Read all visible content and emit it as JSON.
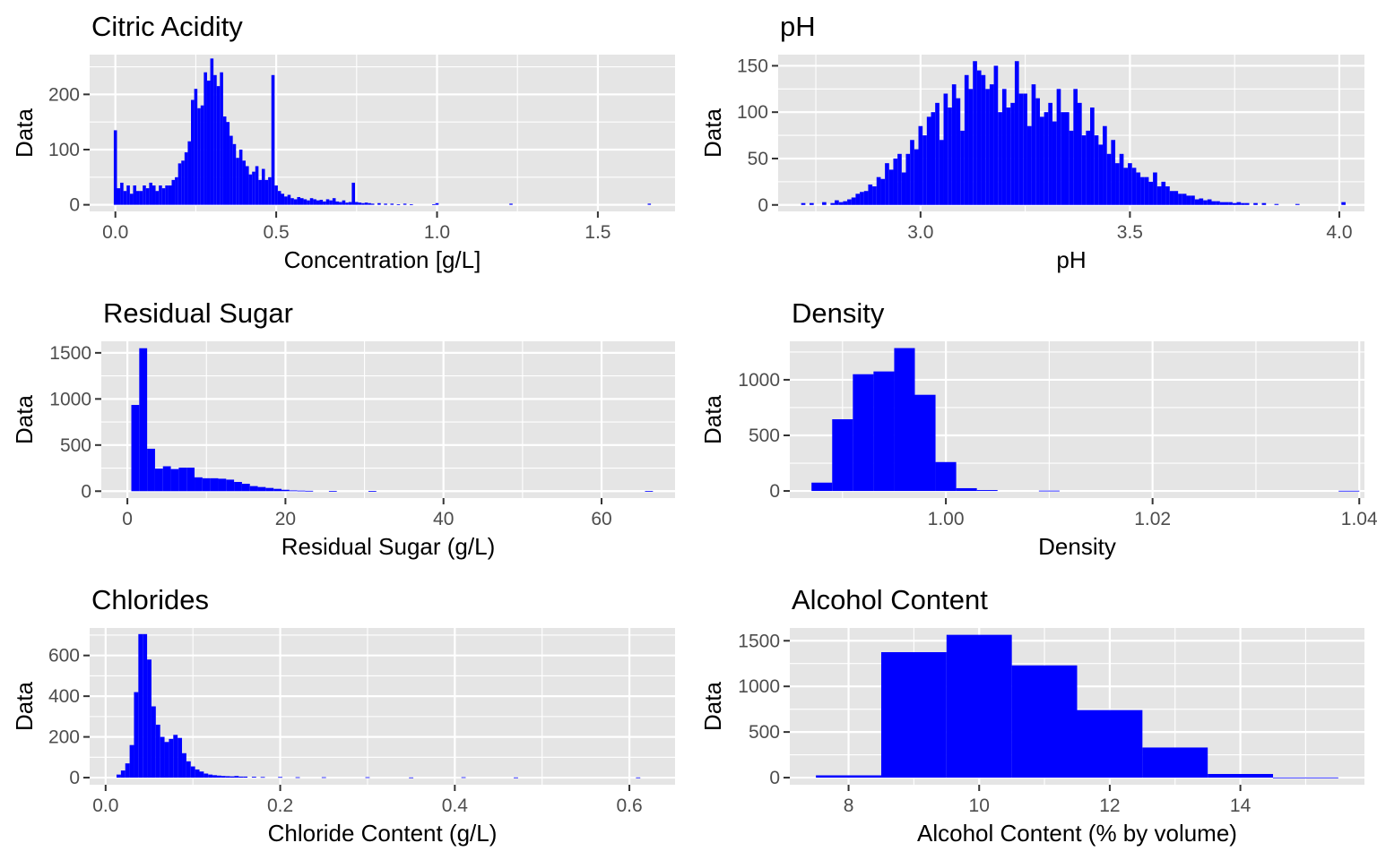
{
  "figure": {
    "bar_color": "#0000FF",
    "panel_background": "#E5E5E5",
    "grid_color": "#FFFFFF"
  },
  "chart_data": [
    {
      "id": "citric-acidity",
      "type": "bar",
      "title": "Citric Acidity",
      "xlabel": "Concentration [g/L]",
      "ylabel": "Data",
      "xlim": [
        -0.08,
        1.74
      ],
      "ylim": [
        -12,
        272
      ],
      "xticks": [
        0.0,
        0.5,
        1.0,
        1.5
      ],
      "xtick_labels": [
        "0.0",
        "0.5",
        "1.0",
        "1.5"
      ],
      "yticks": [
        0,
        100,
        200
      ],
      "ytick_labels": [
        "0",
        "100",
        "200"
      ],
      "grid": true,
      "bin_width": 0.01,
      "x": [
        0.0,
        0.01,
        0.02,
        0.03,
        0.04,
        0.05,
        0.06,
        0.07,
        0.08,
        0.09,
        0.1,
        0.11,
        0.12,
        0.13,
        0.14,
        0.15,
        0.16,
        0.17,
        0.18,
        0.19,
        0.2,
        0.21,
        0.22,
        0.23,
        0.24,
        0.25,
        0.26,
        0.27,
        0.28,
        0.29,
        0.3,
        0.31,
        0.32,
        0.33,
        0.34,
        0.35,
        0.36,
        0.37,
        0.38,
        0.39,
        0.4,
        0.41,
        0.42,
        0.43,
        0.44,
        0.45,
        0.46,
        0.47,
        0.48,
        0.49,
        0.5,
        0.51,
        0.52,
        0.53,
        0.54,
        0.55,
        0.56,
        0.57,
        0.58,
        0.59,
        0.6,
        0.61,
        0.62,
        0.63,
        0.64,
        0.65,
        0.66,
        0.67,
        0.68,
        0.69,
        0.7,
        0.71,
        0.72,
        0.73,
        0.74,
        0.75,
        0.76,
        0.77,
        0.78,
        0.79,
        0.8,
        0.82,
        0.84,
        0.86,
        0.88,
        0.9,
        0.92,
        0.99,
        1.0,
        1.23,
        1.66
      ],
      "values": [
        135,
        30,
        40,
        25,
        35,
        20,
        35,
        25,
        25,
        35,
        30,
        40,
        35,
        25,
        35,
        30,
        35,
        35,
        45,
        50,
        75,
        80,
        95,
        115,
        190,
        210,
        175,
        180,
        240,
        225,
        265,
        235,
        215,
        240,
        160,
        150,
        125,
        110,
        85,
        100,
        80,
        70,
        55,
        60,
        70,
        45,
        65,
        45,
        50,
        235,
        35,
        25,
        20,
        15,
        18,
        12,
        10,
        14,
        12,
        10,
        8,
        12,
        10,
        8,
        9,
        6,
        10,
        8,
        12,
        6,
        5,
        8,
        4,
        5,
        40,
        5,
        4,
        3,
        4,
        3,
        2,
        3,
        2,
        2,
        1,
        2,
        1,
        1,
        3,
        2,
        2
      ]
    },
    {
      "id": "ph",
      "type": "bar",
      "title": "pH",
      "xlabel": "pH",
      "ylabel": "Data",
      "xlim": [
        2.66,
        4.06
      ],
      "ylim": [
        -7,
        162
      ],
      "xticks": [
        3.0,
        3.5,
        4.0
      ],
      "xtick_labels": [
        "3.0",
        "3.5",
        "4.0"
      ],
      "yticks": [
        0,
        50,
        100,
        150
      ],
      "ytick_labels": [
        "0",
        "50",
        "100",
        "150"
      ],
      "grid": true,
      "bin_width": 0.01,
      "x": [
        2.72,
        2.74,
        2.77,
        2.79,
        2.8,
        2.81,
        2.82,
        2.83,
        2.84,
        2.85,
        2.86,
        2.87,
        2.88,
        2.89,
        2.9,
        2.91,
        2.92,
        2.93,
        2.94,
        2.95,
        2.96,
        2.97,
        2.98,
        2.99,
        3.0,
        3.01,
        3.02,
        3.03,
        3.04,
        3.05,
        3.06,
        3.07,
        3.08,
        3.09,
        3.1,
        3.11,
        3.12,
        3.13,
        3.14,
        3.15,
        3.16,
        3.17,
        3.18,
        3.19,
        3.2,
        3.21,
        3.22,
        3.23,
        3.24,
        3.25,
        3.26,
        3.27,
        3.28,
        3.29,
        3.3,
        3.31,
        3.32,
        3.33,
        3.34,
        3.35,
        3.36,
        3.37,
        3.38,
        3.39,
        3.4,
        3.41,
        3.42,
        3.43,
        3.44,
        3.45,
        3.46,
        3.47,
        3.48,
        3.49,
        3.5,
        3.51,
        3.52,
        3.53,
        3.54,
        3.55,
        3.56,
        3.57,
        3.58,
        3.59,
        3.6,
        3.61,
        3.62,
        3.63,
        3.64,
        3.65,
        3.66,
        3.67,
        3.68,
        3.69,
        3.7,
        3.71,
        3.72,
        3.73,
        3.74,
        3.75,
        3.76,
        3.77,
        3.78,
        3.8,
        3.82,
        3.85,
        3.9,
        4.01
      ],
      "values": [
        2,
        2,
        3,
        2,
        5,
        3,
        4,
        6,
        8,
        12,
        14,
        15,
        22,
        20,
        30,
        28,
        45,
        38,
        50,
        55,
        35,
        55,
        70,
        60,
        85,
        75,
        95,
        100,
        110,
        70,
        120,
        105,
        130,
        115,
        80,
        140,
        125,
        155,
        145,
        140,
        125,
        130,
        150,
        100,
        125,
        105,
        110,
        155,
        120,
        120,
        85,
        130,
        115,
        95,
        100,
        110,
        90,
        125,
        100,
        100,
        80,
        125,
        110,
        75,
        80,
        105,
        75,
        65,
        85,
        55,
        70,
        45,
        55,
        40,
        45,
        40,
        35,
        30,
        30,
        25,
        35,
        20,
        25,
        20,
        15,
        15,
        12,
        12,
        10,
        10,
        6,
        7,
        5,
        6,
        4,
        4,
        3,
        3,
        3,
        2,
        3,
        2,
        2,
        2,
        2,
        1,
        1,
        3
      ]
    },
    {
      "id": "residual-sugar",
      "type": "bar",
      "title": "Residual Sugar",
      "xlabel": "Residual Sugar (g/L)",
      "ylabel": "Data",
      "xlim": [
        -3.3,
        69.3
      ],
      "ylim": [
        -75,
        1625
      ],
      "xticks": [
        0,
        20,
        40,
        60
      ],
      "xtick_labels": [
        "0",
        "20",
        "40",
        "60"
      ],
      "yticks": [
        0,
        500,
        1000,
        1500
      ],
      "ytick_labels": [
        "0",
        "500",
        "1000",
        "1500"
      ],
      "grid": true,
      "bin_width": 1,
      "x": [
        1,
        2,
        3,
        4,
        5,
        6,
        7,
        8,
        9,
        10,
        11,
        12,
        13,
        14,
        15,
        16,
        17,
        18,
        19,
        20,
        21,
        22,
        23,
        26,
        31,
        66
      ],
      "values": [
        935,
        1550,
        460,
        245,
        270,
        240,
        255,
        255,
        150,
        140,
        140,
        135,
        125,
        100,
        80,
        55,
        45,
        35,
        25,
        15,
        8,
        6,
        4,
        3,
        2,
        1
      ]
    },
    {
      "id": "density",
      "type": "bar",
      "title": "Density",
      "xlabel": "Density",
      "ylabel": "Data",
      "xlim": [
        0.9849,
        1.0405
      ],
      "ylim": [
        -64,
        1346
      ],
      "xticks": [
        1.0,
        1.02,
        1.04
      ],
      "xtick_labels": [
        "1.00",
        "1.02",
        "1.04"
      ],
      "yticks": [
        0,
        500,
        1000
      ],
      "ytick_labels": [
        "0",
        "500",
        "1000"
      ],
      "grid": true,
      "bin_width": 0.002,
      "x": [
        0.988,
        0.99,
        0.992,
        0.994,
        0.996,
        0.998,
        1.0,
        1.002,
        1.004,
        1.01,
        1.039
      ],
      "values": [
        75,
        645,
        1050,
        1075,
        1285,
        865,
        260,
        25,
        8,
        3,
        2
      ]
    },
    {
      "id": "chlorides",
      "type": "bar",
      "title": "Chlorides",
      "xlabel": "Chloride Content (g/L)",
      "ylabel": "Data",
      "xlim": [
        -0.0183,
        0.6523
      ],
      "ylim": [
        -35,
        735
      ],
      "xticks": [
        0.0,
        0.2,
        0.4,
        0.6
      ],
      "xtick_labels": [
        "0.0",
        "0.2",
        "0.4",
        "0.6"
      ],
      "yticks": [
        0,
        200,
        400,
        600
      ],
      "ytick_labels": [
        "0",
        "200",
        "400",
        "600"
      ],
      "grid": true,
      "bin_width": 0.005,
      "x": [
        0.015,
        0.02,
        0.025,
        0.03,
        0.035,
        0.04,
        0.045,
        0.05,
        0.055,
        0.06,
        0.065,
        0.07,
        0.075,
        0.08,
        0.085,
        0.09,
        0.095,
        0.1,
        0.105,
        0.11,
        0.115,
        0.12,
        0.125,
        0.13,
        0.135,
        0.14,
        0.145,
        0.15,
        0.155,
        0.16,
        0.17,
        0.18,
        0.2,
        0.22,
        0.25,
        0.3,
        0.35,
        0.41,
        0.47,
        0.61
      ],
      "values": [
        15,
        35,
        70,
        160,
        420,
        705,
        705,
        580,
        350,
        260,
        200,
        175,
        190,
        210,
        195,
        120,
        80,
        55,
        40,
        30,
        20,
        15,
        12,
        10,
        8,
        7,
        6,
        8,
        5,
        5,
        4,
        3,
        3,
        2,
        2,
        2,
        1,
        2,
        1,
        1
      ]
    },
    {
      "id": "alcohol-content",
      "type": "bar",
      "title": "Alcohol Content",
      "xlabel": "Alcohol Content (% by volume)",
      "ylabel": "Data",
      "xlim": [
        7.1,
        15.9
      ],
      "ylim": [
        -78,
        1640
      ],
      "xticks": [
        8,
        10,
        12,
        14
      ],
      "xtick_labels": [
        "8",
        "10",
        "12",
        "14"
      ],
      "yticks": [
        0,
        500,
        1000,
        1500
      ],
      "ytick_labels": [
        "0",
        "500",
        "1000",
        "1500"
      ],
      "grid": true,
      "bin_width": 1,
      "x": [
        8,
        9,
        10,
        11,
        12,
        13,
        14,
        15
      ],
      "values": [
        25,
        1375,
        1565,
        1230,
        740,
        330,
        40,
        2
      ]
    }
  ]
}
